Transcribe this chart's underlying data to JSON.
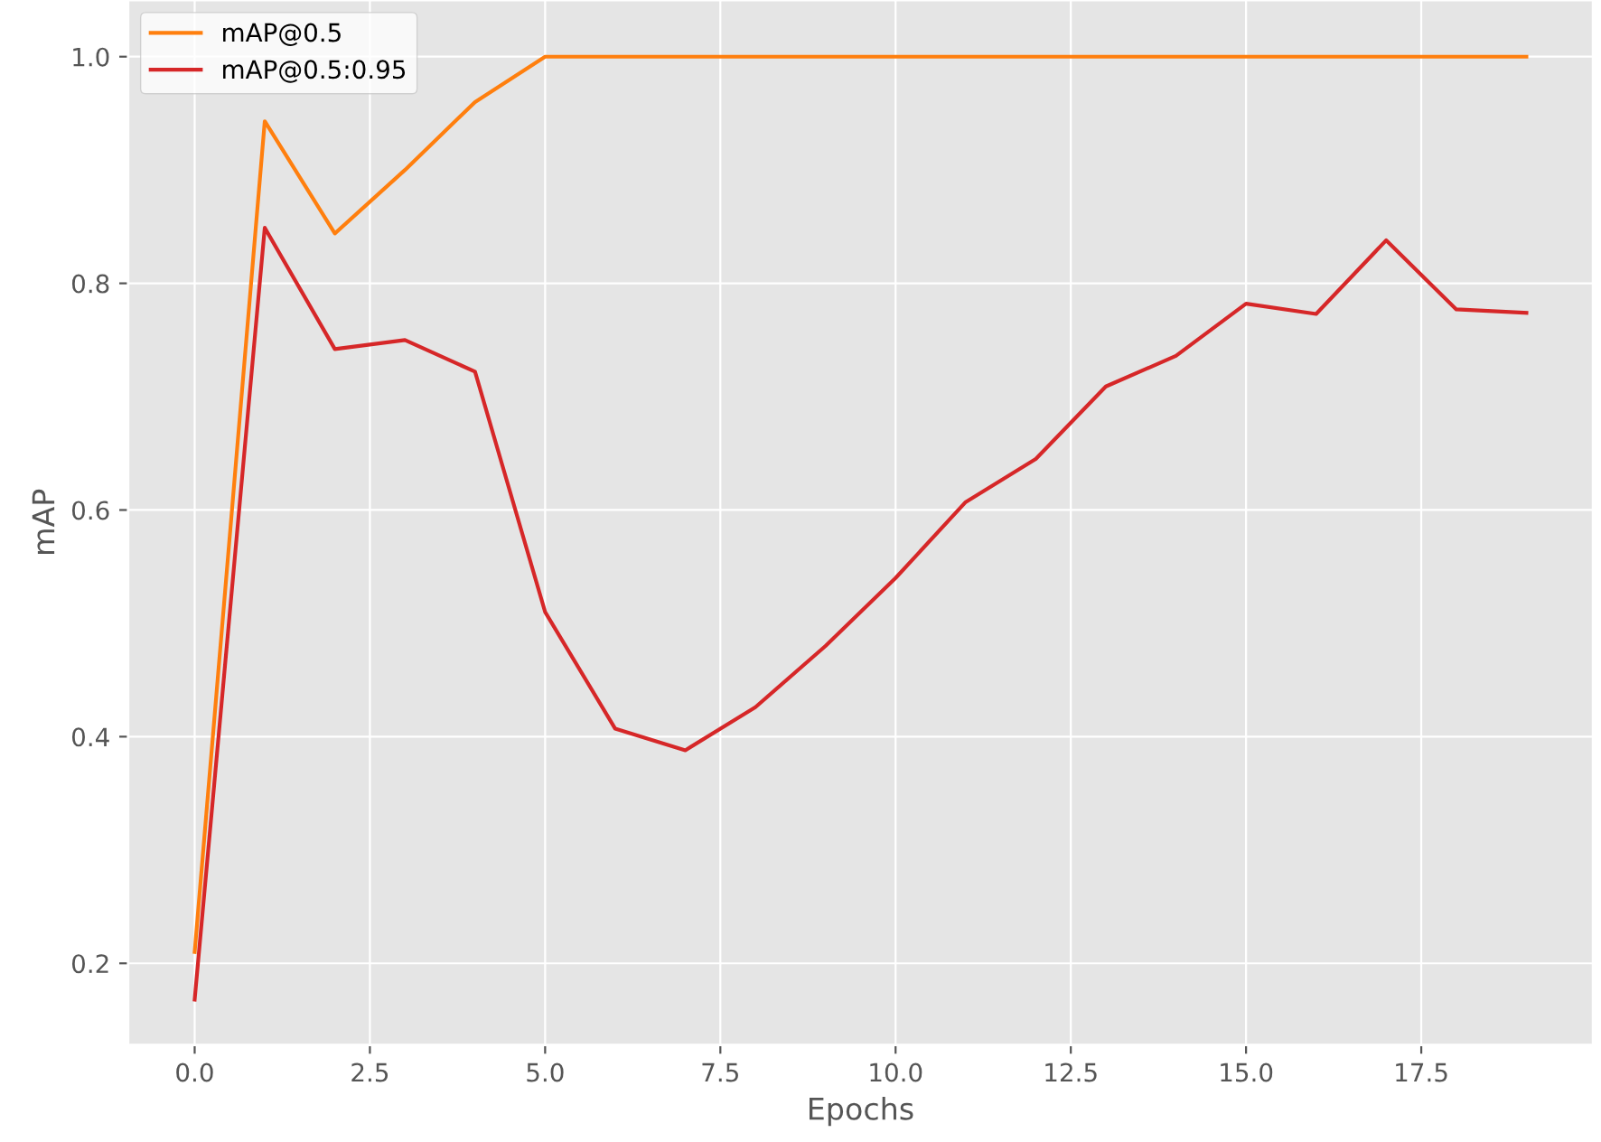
{
  "chart_data": {
    "type": "line",
    "xlabel": "Epochs",
    "ylabel": "mAP",
    "x": [
      0,
      1,
      2,
      3,
      4,
      5,
      6,
      7,
      8,
      9,
      10,
      11,
      12,
      13,
      14,
      15,
      16,
      17,
      18,
      19
    ],
    "series": [
      {
        "name": "mAP@0.5",
        "color": "#ff7f0e",
        "values": [
          0.21,
          0.943,
          0.844,
          0.9,
          0.96,
          1.0,
          1.0,
          1.0,
          1.0,
          1.0,
          1.0,
          1.0,
          1.0,
          1.0,
          1.0,
          1.0,
          1.0,
          1.0,
          1.0,
          1.0
        ]
      },
      {
        "name": "mAP@0.5:0.95",
        "color": "#d62728",
        "values": [
          0.168,
          0.849,
          0.742,
          0.75,
          0.722,
          0.51,
          0.407,
          0.388,
          0.426,
          0.48,
          0.54,
          0.607,
          0.645,
          0.709,
          0.736,
          0.782,
          0.773,
          0.838,
          0.777,
          0.774
        ]
      }
    ],
    "xlim": [
      -0.95,
      19.95
    ],
    "ylim": [
      0.128,
      1.05
    ],
    "xticks": [
      {
        "value": 0,
        "label": "0.0"
      },
      {
        "value": 2.5,
        "label": "2.5"
      },
      {
        "value": 5,
        "label": "5.0"
      },
      {
        "value": 7.5,
        "label": "7.5"
      },
      {
        "value": 10,
        "label": "10.0"
      },
      {
        "value": 12.5,
        "label": "12.5"
      },
      {
        "value": 15,
        "label": "15.0"
      },
      {
        "value": 17.5,
        "label": "17.5"
      }
    ],
    "yticks": [
      {
        "value": 0.2,
        "label": "0.2"
      },
      {
        "value": 0.4,
        "label": "0.4"
      },
      {
        "value": 0.6,
        "label": "0.6"
      },
      {
        "value": 0.8,
        "label": "0.8"
      },
      {
        "value": 1.0,
        "label": "1.0"
      }
    ],
    "grid": true,
    "legend": "top left"
  }
}
